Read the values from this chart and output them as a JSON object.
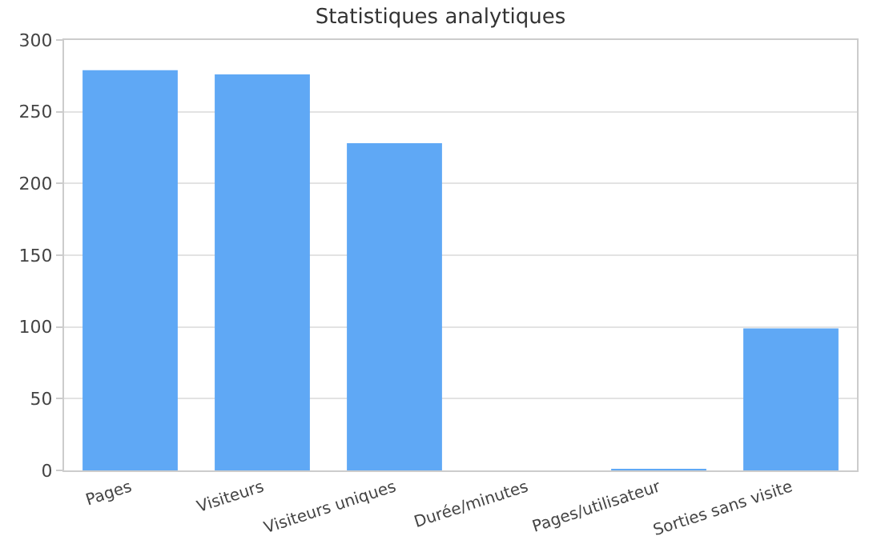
{
  "chart_data": {
    "type": "bar",
    "title": "Statistiques analytiques",
    "categories": [
      "Pages",
      "Visiteurs",
      "Visiteurs uniques",
      "Durée/minutes",
      "Pages/utilisateur",
      "Sorties sans visite"
    ],
    "values": [
      279,
      276,
      228,
      0,
      1,
      99
    ],
    "color": "#5fa8f5",
    "ylim": [
      0,
      300
    ],
    "yticks": [
      0,
      50,
      100,
      150,
      200,
      250,
      300
    ],
    "grid": "y"
  }
}
